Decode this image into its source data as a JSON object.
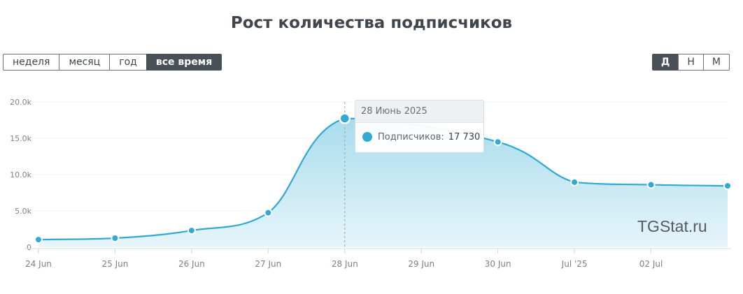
{
  "header": {
    "title": "Рост количества подписчиков"
  },
  "range_buttons": [
    {
      "label": "неделя",
      "active": false
    },
    {
      "label": "месяц",
      "active": false
    },
    {
      "label": "год",
      "active": false
    },
    {
      "label": "все время",
      "active": true
    }
  ],
  "granularity_buttons": [
    {
      "label": "Д",
      "active": true
    },
    {
      "label": "Н",
      "active": false
    },
    {
      "label": "М",
      "active": false
    }
  ],
  "tooltip": {
    "date": "28 Июнь 2025",
    "series_label": "Подписчиков:",
    "value": "17 730"
  },
  "watermark": "TGStat.ru",
  "colors": {
    "line": "#31a9d2",
    "area_top": "#a9dcec",
    "area_bottom": "#e6f5fa",
    "active_button": "#4a5058"
  },
  "chart_data": {
    "type": "area",
    "x": [
      "2025-06-24",
      "2025-06-25",
      "2025-06-26",
      "2025-06-27",
      "2025-06-28",
      "2025-06-30",
      "2025-07-01",
      "2025-07-02",
      "2025-07-03"
    ],
    "series": [
      {
        "name": "Подписчиков",
        "values": [
          1050,
          1250,
          2300,
          4750,
          17730,
          14500,
          8950,
          8600,
          8450
        ]
      }
    ],
    "xticks": [
      {
        "date": "2025-06-24",
        "label": "24 Jun"
      },
      {
        "date": "2025-06-25",
        "label": "25 Jun"
      },
      {
        "date": "2025-06-26",
        "label": "26 Jun"
      },
      {
        "date": "2025-06-27",
        "label": "27 Jun"
      },
      {
        "date": "2025-06-28",
        "label": "28 Jun"
      },
      {
        "date": "2025-06-29",
        "label": "29 Jun"
      },
      {
        "date": "2025-06-30",
        "label": "30 Jun"
      },
      {
        "date": "2025-07-01",
        "label": "Jul '25"
      },
      {
        "date": "2025-07-02",
        "label": "02 Jul"
      }
    ],
    "yticks": [
      {
        "value": 0,
        "label": "0"
      },
      {
        "value": 5000,
        "label": "5.0k"
      },
      {
        "value": 10000,
        "label": "10.0k"
      },
      {
        "value": 15000,
        "label": "15.0k"
      },
      {
        "value": 20000,
        "label": "20.0k"
      }
    ],
    "xlim": [
      "2025-06-24",
      "2025-07-03"
    ],
    "ylim": [
      0,
      20000
    ],
    "highlight": "2025-06-28",
    "grid": true,
    "legend": "none"
  }
}
